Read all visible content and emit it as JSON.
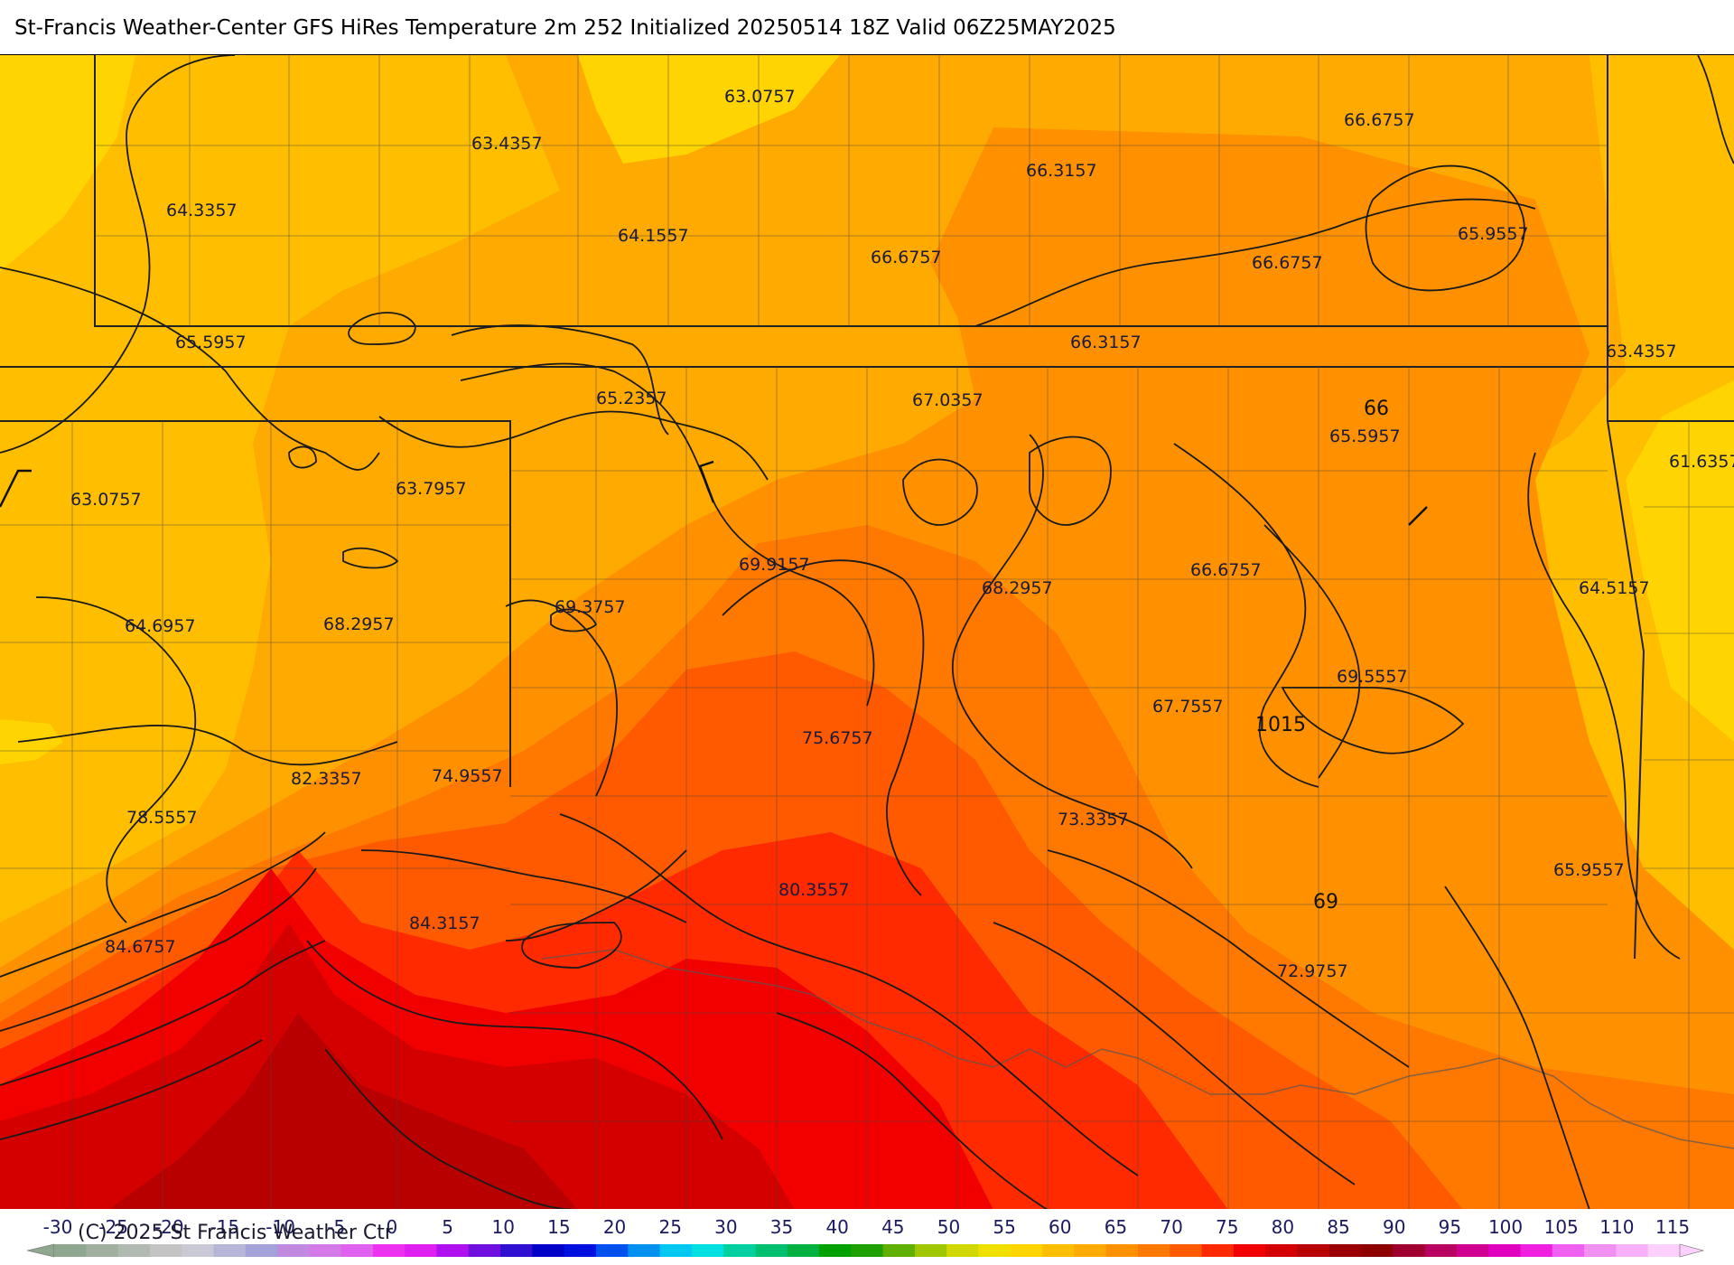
{
  "title": "St-Francis Weather-Center GFS HiRes Temperature 2m  252 Initialized 20250514 18Z Valid 06Z25MAY2025",
  "copyright": "(C) 2025 St Francis Weather Ctr",
  "colors": {
    "yellow_light": "#ffd400",
    "yellow_orange": "#ffbf00",
    "orange_light": "#ffaa00",
    "orange": "#ff9100",
    "orange_dark": "#ff7800",
    "red_orange": "#ff5a00",
    "red": "#ff2a00",
    "red_deep": "#f20000",
    "red_dark": "#d40000",
    "maroon": "#b80000"
  },
  "legend": {
    "ticks": [
      "-30",
      "-25",
      "-20",
      "-15",
      "-10",
      "-5",
      "0",
      "5",
      "10",
      "15",
      "20",
      "25",
      "30",
      "35",
      "40",
      "45",
      "50",
      "55",
      "60",
      "65",
      "70",
      "75",
      "80",
      "85",
      "90",
      "95",
      "100",
      "105",
      "110",
      "115"
    ],
    "swatches": [
      "#8fa68f",
      "#9fb09f",
      "#b0bab0",
      "#c3c3c3",
      "#c8c8d6",
      "#b6b6d8",
      "#a3a3da",
      "#c08ae0",
      "#d47ae8",
      "#e060f0",
      "#ee30f0",
      "#e020f0",
      "#b010f0",
      "#7010e0",
      "#3010d0",
      "#0000c8",
      "#0010e0",
      "#0050f0",
      "#0090f0",
      "#00c8f0",
      "#00e0e0",
      "#00d0a0",
      "#00c070",
      "#00b040",
      "#00a000",
      "#20a000",
      "#60b000",
      "#a0c800",
      "#d0d800",
      "#f0e000",
      "#ffd400",
      "#ffbf00",
      "#ffaa00",
      "#ff9100",
      "#ff7800",
      "#ff5a00",
      "#ff2a00",
      "#f20000",
      "#d40000",
      "#b80000",
      "#9a0000",
      "#8c0000",
      "#a00030",
      "#b80060",
      "#d00090",
      "#e000c0",
      "#f020e0",
      "#f060f0",
      "#f090f0",
      "#f8b0f8",
      "#fcd0fc"
    ]
  },
  "labels": [
    {
      "text": "63.0757"
    },
    {
      "text": "63.4357"
    },
    {
      "text": "64.3357"
    },
    {
      "text": "64.1557"
    },
    {
      "text": "66.3157"
    },
    {
      "text": "66.6757"
    },
    {
      "text": "66.6757"
    },
    {
      "text": "66.6757"
    },
    {
      "text": "65.9557"
    },
    {
      "text": "65.5957"
    },
    {
      "text": "65.2357"
    },
    {
      "text": "67.0357"
    },
    {
      "text": "66.3157"
    },
    {
      "text": "63.4357"
    },
    {
      "text": "65.5957"
    },
    {
      "text": "61.6357"
    },
    {
      "text": "63.7957"
    },
    {
      "text": "63.0757"
    },
    {
      "text": "69.9157"
    },
    {
      "text": "68.2957"
    },
    {
      "text": "66.6757"
    },
    {
      "text": "64.5157"
    },
    {
      "text": "64.6957"
    },
    {
      "text": "68.2957"
    },
    {
      "text": "69.3757"
    },
    {
      "text": "69.5557"
    },
    {
      "text": "67.7557"
    },
    {
      "text": "75.6757"
    },
    {
      "text": "82.3357"
    },
    {
      "text": "74.9557"
    },
    {
      "text": "78.5557"
    },
    {
      "text": "73.3357"
    },
    {
      "text": "80.3557"
    },
    {
      "text": "84.3157"
    },
    {
      "text": "84.6757"
    },
    {
      "text": "65.9557"
    },
    {
      "text": "72.9757"
    }
  ],
  "isobar_labels": [
    {
      "text": "66"
    },
    {
      "text": "1015"
    },
    {
      "text": "69"
    }
  ]
}
